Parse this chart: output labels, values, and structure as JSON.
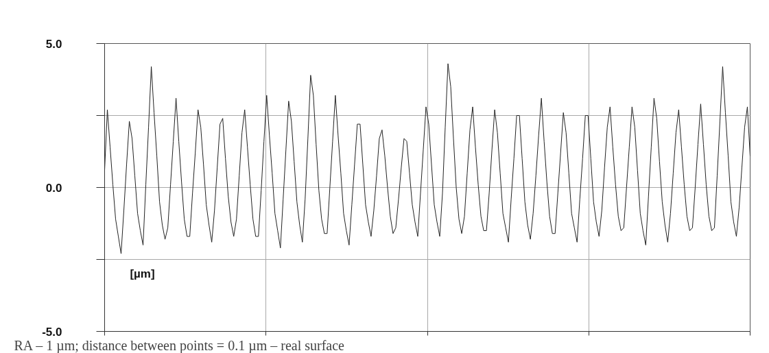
{
  "chart_data": {
    "type": "line",
    "ylabel": "[µm]",
    "annotations": [
      "RA – 1 µm; distance between points = 0.1 µm – real surface"
    ],
    "ylim": [
      -5,
      5
    ],
    "yticks": [
      {
        "value": -5,
        "label": "-5.0"
      },
      {
        "value": -2.5,
        "label": null
      },
      {
        "value": 0,
        "label": "0.0"
      },
      {
        "value": 2.5,
        "label": null
      },
      {
        "value": 5,
        "label": "5.0"
      }
    ],
    "tick_labels": "y",
    "grid": true,
    "line_style": "solid",
    "categories": [
      null,
      null,
      null,
      null,
      null,
      null,
      null,
      null,
      null,
      null,
      null,
      null,
      null,
      null,
      null,
      null,
      null,
      null,
      null,
      null,
      null,
      null,
      null,
      null,
      null,
      null,
      null,
      null,
      null,
      null,
      null,
      null,
      null,
      null,
      null,
      null,
      null,
      null,
      null,
      null,
      null,
      null,
      null,
      null,
      null,
      null,
      null,
      null,
      null,
      null,
      null,
      null,
      null,
      null,
      null,
      null,
      null,
      null,
      null,
      null,
      null,
      null,
      null,
      null,
      null,
      null,
      null,
      null,
      null,
      null,
      null,
      null,
      null,
      null,
      null,
      null,
      null,
      null,
      null,
      null,
      null,
      null,
      null,
      null,
      null,
      null,
      null,
      null,
      null,
      null,
      null,
      null,
      null,
      null,
      null,
      null,
      null,
      null,
      null,
      null,
      null,
      null,
      null,
      null,
      null,
      null,
      null,
      null,
      null,
      null,
      null,
      null,
      null,
      null,
      null,
      null,
      null,
      null,
      null,
      null,
      null,
      null,
      null,
      null,
      null,
      null,
      null,
      null,
      null,
      null,
      null,
      null,
      null,
      null,
      null,
      null,
      null,
      null,
      null,
      null,
      null,
      null,
      null,
      null,
      null,
      null,
      null,
      null,
      null,
      null,
      null,
      null,
      null,
      null,
      null,
      null,
      null,
      null,
      null,
      null,
      null,
      null,
      null,
      null,
      null,
      null,
      null,
      null,
      null,
      null,
      null,
      null,
      null,
      null,
      null,
      null,
      null,
      null,
      null,
      null,
      null,
      null,
      null,
      null,
      null,
      null,
      null,
      null,
      null,
      null,
      null,
      null,
      null,
      null,
      null,
      null,
      null,
      null,
      null,
      null,
      null,
      null,
      null,
      null,
      null,
      null,
      null,
      null,
      null,
      null,
      null,
      null,
      null,
      null,
      null,
      null,
      null,
      null,
      null,
      null,
      null,
      null,
      null,
      null,
      null,
      null,
      null,
      null,
      null,
      null,
      null,
      null,
      null,
      null,
      null,
      null
    ],
    "series": [
      {
        "color": "#222222",
        "values": [
          0.6,
          2.7,
          1.4,
          0.1,
          -1.1,
          -1.7,
          -2.3,
          -0.8,
          0.8,
          2.3,
          1.7,
          0.4,
          -0.9,
          -1.5,
          -2.0,
          0.1,
          2.1,
          4.2,
          2.6,
          1.1,
          -0.5,
          -1.3,
          -1.8,
          -1.4,
          0.1,
          1.6,
          3.1,
          1.6,
          0.2,
          -1.1,
          -1.7,
          -1.7,
          -0.2,
          1.2,
          2.7,
          2.1,
          0.8,
          -0.6,
          -1.3,
          -1.9,
          -0.8,
          0.7,
          2.2,
          2.4,
          1.0,
          -0.3,
          -1.2,
          -1.7,
          -1.1,
          0.4,
          1.9,
          2.7,
          1.4,
          0.1,
          -1.1,
          -1.7,
          -1.7,
          -0.1,
          1.6,
          3.2,
          1.8,
          0.5,
          -0.9,
          -1.5,
          -2.1,
          -0.4,
          1.3,
          3.0,
          2.3,
          0.9,
          -0.5,
          -1.3,
          -1.9,
          -0.4,
          1.7,
          3.9,
          3.2,
          1.5,
          -0.1,
          -1.1,
          -1.6,
          -1.6,
          0.0,
          1.6,
          3.2,
          1.8,
          0.5,
          -0.9,
          -1.5,
          -2.0,
          -0.6,
          0.8,
          2.2,
          2.2,
          0.8,
          -0.6,
          -1.2,
          -1.7,
          -0.8,
          0.4,
          1.7,
          2.0,
          1.1,
          0.0,
          -1.0,
          -1.6,
          -1.4,
          -0.4,
          0.7,
          1.7,
          1.6,
          0.5,
          -0.6,
          -1.2,
          -1.7,
          -0.2,
          1.3,
          2.8,
          2.2,
          0.8,
          -0.6,
          -1.2,
          -1.7,
          -0.2,
          2.1,
          4.3,
          3.5,
          1.7,
          0.0,
          -1.1,
          -1.6,
          -1.0,
          0.5,
          2.0,
          2.8,
          1.4,
          0.1,
          -1.0,
          -1.5,
          -1.5,
          -0.2,
          1.3,
          2.7,
          1.9,
          0.5,
          -0.9,
          -1.4,
          -1.9,
          -0.4,
          1.0,
          2.5,
          2.5,
          1.0,
          -0.5,
          -1.3,
          -1.8,
          -0.9,
          0.4,
          1.8,
          3.1,
          1.6,
          0.2,
          -1.0,
          -1.6,
          -1.6,
          -0.2,
          1.2,
          2.6,
          1.9,
          0.5,
          -0.9,
          -1.4,
          -1.9,
          -0.4,
          1.0,
          2.5,
          2.5,
          1.0,
          -0.5,
          -1.2,
          -1.7,
          -0.8,
          0.7,
          2.1,
          2.8,
          1.4,
          0.1,
          -1.0,
          -1.5,
          -1.4,
          0.0,
          1.4,
          2.8,
          2.1,
          0.6,
          -0.9,
          -1.5,
          -2.0,
          -0.3,
          1.4,
          3.1,
          2.4,
          0.9,
          -0.5,
          -1.3,
          -1.9,
          -0.9,
          0.5,
          1.9,
          2.7,
          1.4,
          0.1,
          -1.0,
          -1.5,
          -1.4,
          0.0,
          1.5,
          2.9,
          1.5,
          0.1,
          -1.0,
          -1.5,
          -1.4,
          0.4,
          2.3,
          4.2,
          2.6,
          1.1,
          -0.5,
          -1.2,
          -1.7,
          -0.7,
          0.7,
          2.1,
          2.8,
          1.1
        ]
      }
    ]
  }
}
